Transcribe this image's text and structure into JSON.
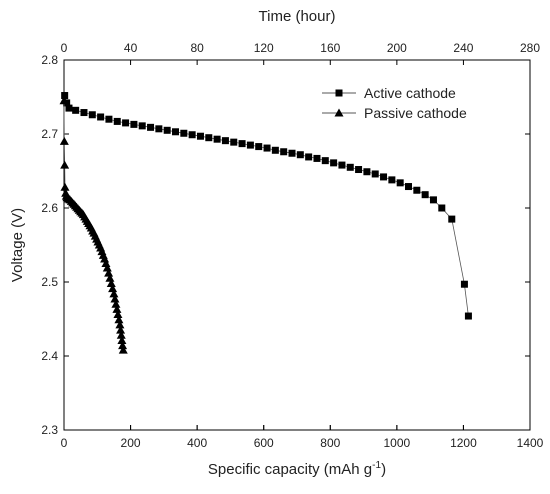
{
  "chart_data": {
    "type": "scatter",
    "xlabel": "Specific capacity (mAh g",
    "xlabel_sup": "-1",
    "xlabel_end": ")",
    "x2label": "Time (hour)",
    "ylabel": "Voltage (V)",
    "xlim": [
      0,
      1400
    ],
    "ylim": [
      2.3,
      2.8
    ],
    "x2lim": [
      0,
      280
    ],
    "x_ticks": [
      0,
      200,
      400,
      600,
      800,
      1000,
      1200,
      1400
    ],
    "y_ticks": [
      "2.3",
      "2.4",
      "2.5",
      "2.6",
      "2.7",
      "2.8"
    ],
    "x2_ticks": [
      0,
      40,
      80,
      120,
      160,
      200,
      240,
      280
    ],
    "legend_position": "top-right",
    "grid": false,
    "series": [
      {
        "name": "Active cathode",
        "marker": "square",
        "color": "#000000",
        "x": [
          2,
          8,
          15,
          35,
          60,
          85,
          110,
          135,
          160,
          185,
          210,
          235,
          260,
          285,
          310,
          335,
          360,
          385,
          410,
          435,
          460,
          485,
          510,
          535,
          560,
          585,
          610,
          635,
          660,
          685,
          710,
          735,
          760,
          785,
          810,
          835,
          860,
          885,
          910,
          935,
          960,
          985,
          1010,
          1035,
          1060,
          1085,
          1110,
          1135,
          1165,
          1203,
          1215
        ],
        "y": [
          2.752,
          2.742,
          2.735,
          2.732,
          2.729,
          2.726,
          2.723,
          2.72,
          2.717,
          2.715,
          2.713,
          2.711,
          2.709,
          2.707,
          2.705,
          2.703,
          2.701,
          2.699,
          2.697,
          2.695,
          2.693,
          2.691,
          2.689,
          2.687,
          2.685,
          2.683,
          2.681,
          2.678,
          2.676,
          2.674,
          2.672,
          2.669,
          2.667,
          2.664,
          2.661,
          2.658,
          2.655,
          2.652,
          2.649,
          2.646,
          2.642,
          2.638,
          2.634,
          2.629,
          2.624,
          2.618,
          2.611,
          2.6,
          2.585,
          2.497,
          2.454
        ]
      },
      {
        "name": "Passive cathode",
        "marker": "triangle",
        "color": "#000000",
        "x": [
          0,
          1,
          2,
          3,
          5,
          7,
          9,
          12,
          15,
          18,
          22,
          26,
          30,
          34,
          38,
          42,
          46,
          50,
          54,
          58,
          62,
          66,
          70,
          74,
          78,
          82,
          86,
          90,
          94,
          98,
          102,
          106,
          110,
          114,
          118,
          122,
          126,
          130,
          134,
          138,
          142,
          146,
          150,
          153,
          156,
          159,
          162,
          165,
          168,
          170,
          172,
          174,
          176,
          178
        ],
        "y": [
          2.745,
          2.69,
          2.658,
          2.628,
          2.62,
          2.616,
          2.614,
          2.613,
          2.612,
          2.611,
          2.609,
          2.607,
          2.605,
          2.603,
          2.601,
          2.599,
          2.597,
          2.595,
          2.593,
          2.591,
          2.588,
          2.585,
          2.582,
          2.579,
          2.576,
          2.573,
          2.569,
          2.566,
          2.562,
          2.558,
          2.554,
          2.55,
          2.546,
          2.541,
          2.536,
          2.531,
          2.525,
          2.519,
          2.512,
          2.505,
          2.498,
          2.491,
          2.484,
          2.477,
          2.47,
          2.463,
          2.456,
          2.449,
          2.442,
          2.435,
          2.428,
          2.421,
          2.414,
          2.408
        ]
      }
    ]
  }
}
